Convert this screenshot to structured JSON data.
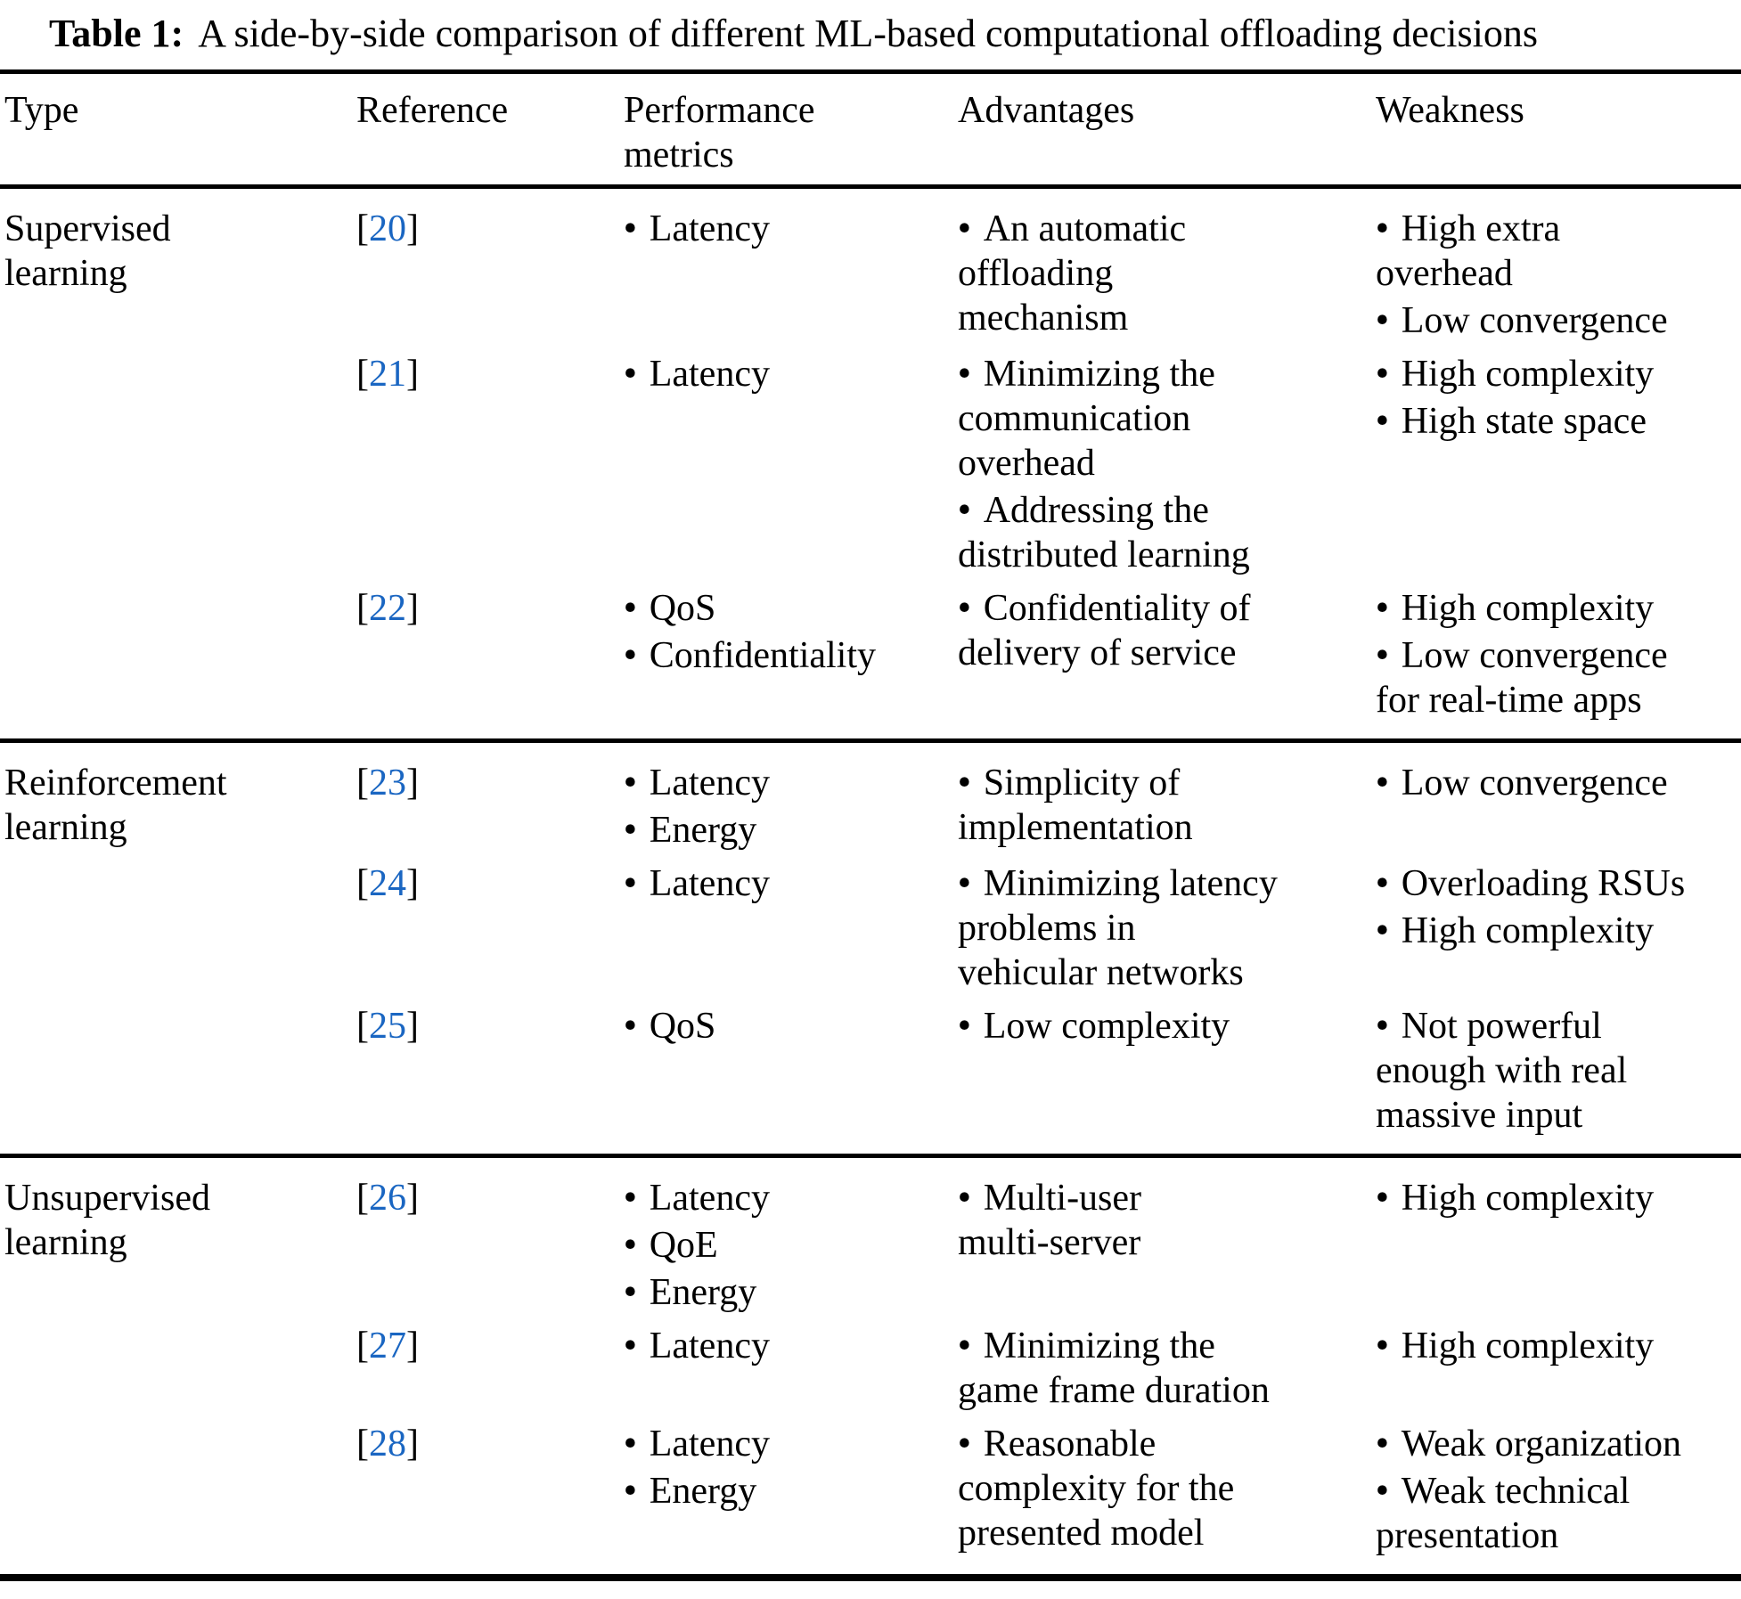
{
  "title": {
    "label": "Table 1:",
    "text": "A side-by-side comparison of different ML-based computational offloading decisions"
  },
  "columns": [
    "Type",
    "Reference",
    "Performance\nmetrics",
    "Advantages",
    "Weakness"
  ],
  "bullet_char": "•",
  "citation_open": "[",
  "citation_close": "]",
  "link_color": "#1a66c2",
  "text_color": "#000000",
  "sections": [
    {
      "type": "Supervised\nlearning",
      "rows": [
        {
          "ref": "20",
          "metrics": [
            "Latency"
          ],
          "advantages": [
            "An automatic\noffloading\nmechanism"
          ],
          "weaknesses": [
            "High extra\noverhead",
            "Low convergence"
          ]
        },
        {
          "ref": "21",
          "metrics": [
            "Latency"
          ],
          "advantages": [
            "Minimizing the\ncommunication\noverhead",
            "Addressing the\ndistributed learning"
          ],
          "weaknesses": [
            "High complexity",
            "High state space"
          ]
        },
        {
          "ref": "22",
          "metrics": [
            "QoS",
            "Confidentiality"
          ],
          "advantages": [
            "Confidentiality of\ndelivery of service"
          ],
          "weaknesses": [
            "High complexity",
            "Low convergence\nfor real-time apps"
          ]
        }
      ]
    },
    {
      "type": "Reinforcement\nlearning",
      "rows": [
        {
          "ref": "23",
          "metrics": [
            "Latency",
            "Energy"
          ],
          "advantages": [
            "Simplicity of\nimplementation"
          ],
          "weaknesses": [
            "Low convergence"
          ]
        },
        {
          "ref": "24",
          "metrics": [
            "Latency"
          ],
          "advantages": [
            "Minimizing latency\nproblems in\nvehicular networks"
          ],
          "weaknesses": [
            "Overloading RSUs",
            "High complexity"
          ]
        },
        {
          "ref": "25",
          "metrics": [
            "QoS"
          ],
          "advantages": [
            "Low complexity"
          ],
          "weaknesses": [
            "Not powerful\nenough with real\nmassive input"
          ]
        }
      ]
    },
    {
      "type": "Unsupervised\nlearning",
      "rows": [
        {
          "ref": "26",
          "metrics": [
            "Latency",
            "QoE",
            "Energy"
          ],
          "advantages": [
            "Multi-user\nmulti-server"
          ],
          "weaknesses": [
            "High complexity"
          ]
        },
        {
          "ref": "27",
          "metrics": [
            "Latency"
          ],
          "advantages": [
            "Minimizing the\ngame frame duration"
          ],
          "weaknesses": [
            "High complexity"
          ]
        },
        {
          "ref": "28",
          "metrics": [
            "Latency",
            "Energy"
          ],
          "advantages": [
            "Reasonable\ncomplexity for the\npresented model"
          ],
          "weaknesses": [
            "Weak organization",
            "Weak technical\npresentation"
          ]
        }
      ]
    }
  ]
}
